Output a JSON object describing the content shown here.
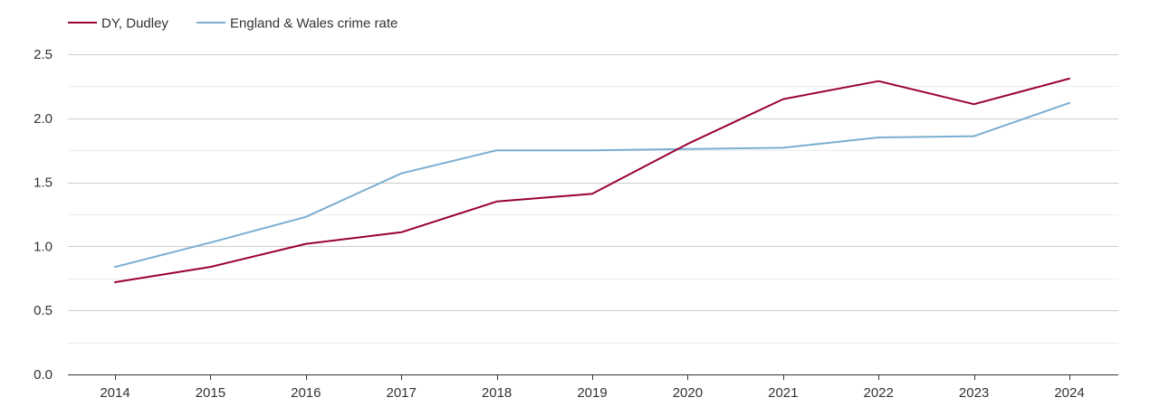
{
  "chart_data": {
    "type": "line",
    "title": "",
    "xlabel": "",
    "ylabel": "",
    "x": [
      "2014",
      "2015",
      "2016",
      "2017",
      "2018",
      "2019",
      "2020",
      "2021",
      "2022",
      "2023",
      "2024"
    ],
    "ylim": [
      0,
      2.5
    ],
    "yticks": [
      "0.0",
      "0.5",
      "1.0",
      "1.5",
      "2.0",
      "2.5"
    ],
    "grid": true,
    "legend_position": "top-left",
    "series": [
      {
        "name": "DY, Dudley",
        "color": "#990033",
        "values": [
          0.72,
          0.84,
          1.02,
          1.11,
          1.35,
          1.41,
          1.8,
          2.15,
          2.29,
          2.11,
          2.31
        ]
      },
      {
        "name": "England & Wales crime rate",
        "color": "#7aaed0",
        "values": [
          0.84,
          1.03,
          1.23,
          1.57,
          1.75,
          1.75,
          1.76,
          1.77,
          1.85,
          1.86,
          2.12
        ]
      }
    ]
  }
}
